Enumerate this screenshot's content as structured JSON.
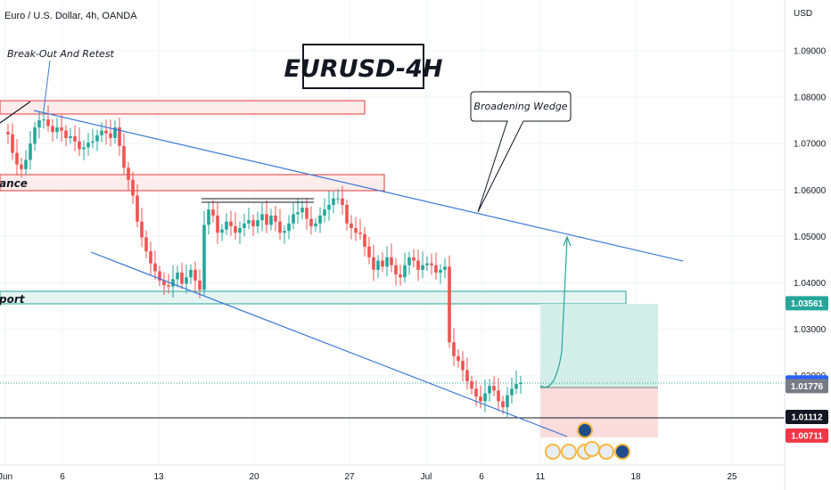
{
  "header": {
    "symbol_title": "Euro / U.S. Dollar, 4h, OANDA",
    "currency": "USD"
  },
  "annotations": {
    "chart_label": "EURUSD-4H",
    "breakout_note": "Break-Out And Retest",
    "pattern_note": "Broadening Wedge",
    "resistance_label": "ance",
    "support_label": "port"
  },
  "price_badges": [
    {
      "label": "1.03561",
      "value": 1.03561,
      "color": "#26a69a"
    },
    {
      "label": "1.01854",
      "value": 1.01854,
      "color": "#2962ff"
    },
    {
      "label": "1.01776",
      "value": 1.01776,
      "color": "#787b86"
    },
    {
      "label": "1.01112",
      "value": 1.01112,
      "color": "#131722"
    },
    {
      "label": "1.00711",
      "value": 1.00711,
      "color": "#f23645"
    }
  ],
  "colors": {
    "up": "#26a69a",
    "down": "#ef5350",
    "trendline": "#3c78d8",
    "zone_fill": "#fdecec",
    "zone_border": "#e53935",
    "support_fill": "#e6f4f1",
    "support_border": "#26a69a",
    "target_fill": "#d3eee9",
    "stop_fill": "#fbdcdc"
  },
  "chart_data": {
    "type": "candlestick",
    "ylim": [
      1.0015,
      1.1
    ],
    "y_ticks": [
      "1.09000",
      "1.08000",
      "1.07000",
      "1.06000",
      "1.05000",
      "1.04000",
      "1.03000",
      "1.02000"
    ],
    "y_tick_values": [
      1.09,
      1.08,
      1.07,
      1.06,
      1.05,
      1.04,
      1.03,
      1.02
    ],
    "x_ticks": [
      "Jun",
      "6",
      "13",
      "20",
      "27",
      "Jul",
      "6",
      "11",
      "18",
      "25"
    ],
    "price_series": [
      1.0725,
      1.072,
      1.068,
      1.0655,
      1.0645,
      1.0665,
      1.07,
      1.0735,
      1.075,
      1.0752,
      1.0738,
      1.0725,
      1.0735,
      1.0728,
      1.0712,
      1.0716,
      1.0705,
      1.0688,
      1.0692,
      1.0702,
      1.0705,
      1.0718,
      1.0728,
      1.0722,
      1.0712,
      1.0735,
      1.0695,
      1.0648,
      1.0622,
      1.0588,
      1.0532,
      1.0498,
      1.0468,
      1.0442,
      1.0425,
      1.0405,
      1.0395,
      1.0392,
      1.0408,
      1.0422,
      1.0398,
      1.0412,
      1.0428,
      1.0405,
      1.0385,
      1.0525,
      1.0558,
      1.0545,
      1.0508,
      1.0515,
      1.0532,
      1.0522,
      1.0508,
      1.0518,
      1.0528,
      1.0535,
      1.0522,
      1.0535,
      1.0548,
      1.0525,
      1.0545,
      1.0532,
      1.0508,
      1.0512,
      1.0528,
      1.0548,
      1.0552,
      1.0562,
      1.0538,
      1.0522,
      1.0528,
      1.0545,
      1.0558,
      1.0568,
      1.0582,
      1.0582,
      1.0568,
      1.0528,
      1.0518,
      1.0508,
      1.0505,
      1.0478,
      1.0455,
      1.0428,
      1.0448,
      1.0435,
      1.0455,
      1.0438,
      1.0418,
      1.0412,
      1.0438,
      1.0455,
      1.0448,
      1.0428,
      1.0438,
      1.0442,
      1.0438,
      1.0422,
      1.0428,
      1.0435,
      1.0272,
      1.0242,
      1.0232,
      1.0212,
      1.0188,
      1.0172,
      1.0155,
      1.0145,
      1.0162,
      1.0178,
      1.0168,
      1.0145,
      1.0132,
      1.0158,
      1.0172,
      1.0182,
      1.0185
    ]
  }
}
